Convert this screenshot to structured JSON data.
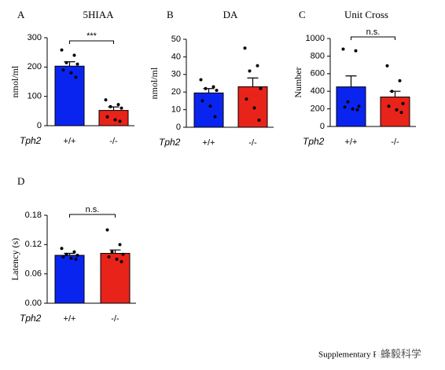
{
  "chart_data": [
    {
      "type": "bar",
      "panel": "A",
      "title": "5HIAA",
      "ylabel": "nmol/ml",
      "xlabel": "Tph2",
      "categories": [
        "+/+",
        "-/-"
      ],
      "values": [
        203,
        52
      ],
      "errors": [
        15,
        12
      ],
      "points": [
        [
          258,
          240,
          215,
          210,
          190,
          180,
          165
        ],
        [
          88,
          72,
          65,
          60,
          30,
          20,
          15
        ]
      ],
      "colors": [
        "#0a24f0",
        "#e8231a"
      ],
      "ylim": [
        0,
        300
      ],
      "yticks": [
        0,
        100,
        200,
        300
      ],
      "annotation": "***"
    },
    {
      "type": "bar",
      "panel": "B",
      "title": "DA",
      "ylabel": "nmol/ml",
      "xlabel": "Tph2",
      "categories": [
        "+/+",
        "-/-"
      ],
      "values": [
        19.5,
        23
      ],
      "errors": [
        2.5,
        5
      ],
      "points": [
        [
          27,
          23,
          22,
          21,
          15,
          12,
          6
        ],
        [
          45,
          35,
          32,
          22,
          16,
          11,
          4
        ]
      ],
      "colors": [
        "#0a24f0",
        "#e8231a"
      ],
      "ylim": [
        0,
        50
      ],
      "yticks": [
        0,
        10,
        20,
        30,
        40,
        50
      ]
    },
    {
      "type": "bar",
      "panel": "C",
      "title": "Unit Cross",
      "ylabel": "Number",
      "xlabel": "Tph2",
      "categories": [
        "+/+",
        "-/-"
      ],
      "values": [
        450,
        335
      ],
      "errors": [
        125,
        65
      ],
      "points": [
        [
          880,
          860,
          280,
          230,
          220,
          200,
          190
        ],
        [
          690,
          520,
          400,
          260,
          230,
          190,
          160
        ]
      ],
      "colors": [
        "#0a24f0",
        "#e8231a"
      ],
      "ylim": [
        0,
        1000
      ],
      "yticks": [
        0,
        200,
        400,
        600,
        800,
        1000
      ],
      "annotation": "n.s."
    },
    {
      "type": "bar",
      "panel": "D",
      "ylabel": "Latency (s)",
      "xlabel": "Tph2",
      "categories": [
        "+/+",
        "-/-"
      ],
      "values": [
        0.098,
        0.102
      ],
      "errors": [
        0.004,
        0.007
      ],
      "points": [
        [
          0.112,
          0.105,
          0.1,
          0.098,
          0.095,
          0.092,
          0.09
        ],
        [
          0.15,
          0.12,
          0.105,
          0.1,
          0.095,
          0.09,
          0.085
        ]
      ],
      "colors": [
        "#0a24f0",
        "#e8231a"
      ],
      "ylim": [
        0,
        0.18
      ],
      "yticks": [
        {
          "value": 0,
          "label": "0.00"
        },
        0.06,
        0.12,
        0.18
      ],
      "annotation": "n.s."
    }
  ],
  "footer": "Supplementary Figure",
  "watermark": "蜂毅科学"
}
